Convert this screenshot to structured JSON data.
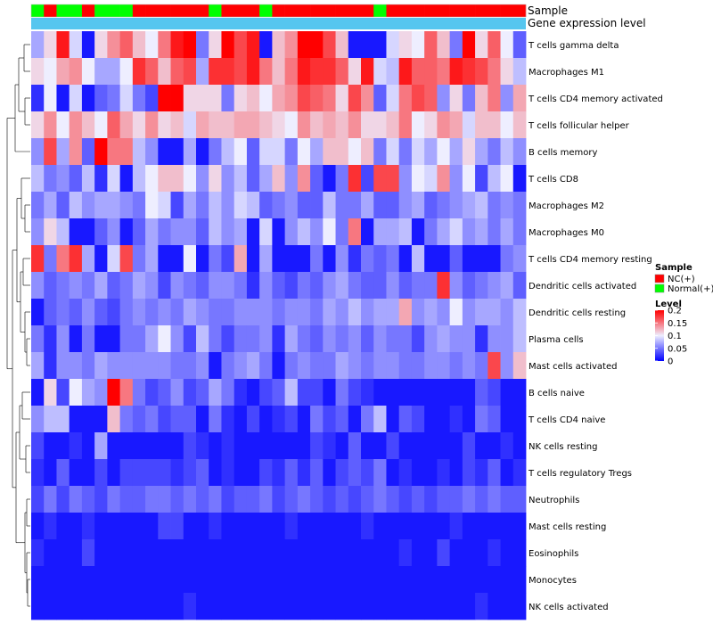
{
  "chart_data": {
    "type": "heatmap",
    "annotation_tracks": [
      {
        "name": "Sample"
      },
      {
        "name": "Gene expression level"
      }
    ],
    "sample_groups": [
      "Normal(+)",
      "NC(+)",
      "Normal(+)",
      "Normal(+)",
      "NC(+)",
      "Normal(+)",
      "Normal(+)",
      "Normal(+)",
      "NC(+)",
      "NC(+)",
      "NC(+)",
      "NC(+)",
      "NC(+)",
      "NC(+)",
      "Normal(+)",
      "NC(+)",
      "NC(+)",
      "NC(+)",
      "Normal(+)",
      "NC(+)",
      "NC(+)",
      "NC(+)",
      "NC(+)",
      "NC(+)",
      "NC(+)",
      "NC(+)",
      "NC(+)",
      "Normal(+)",
      "NC(+)",
      "NC(+)",
      "NC(+)",
      "NC(+)",
      "NC(+)",
      "NC(+)",
      "NC(+)",
      "NC(+)",
      "NC(+)",
      "NC(+)",
      "NC(+)"
    ],
    "rows": [
      "T cells gamma delta",
      "Macrophages M1",
      "T cells CD4 memory activated",
      "T cells follicular helper",
      "B cells memory",
      "T cells CD8",
      "Macrophages M2",
      "Macrophages M0",
      "T cells CD4 memory resting",
      "Dendritic cells activated",
      "Dendritic cells resting",
      "Plasma cells",
      "Mast cells activated",
      "B cells naive",
      "T cells CD4 naive",
      "NK cells resting",
      "T cells regulatory  Tregs",
      "Neutrophils",
      "Mast cells resting",
      "Eosinophils",
      "Monocytes",
      "NK cells activated"
    ],
    "values": [
      [
        0.07,
        0.11,
        0.19,
        0.09,
        0.01,
        0.11,
        0.14,
        0.16,
        0.12,
        0.1,
        0.15,
        0.19,
        0.2,
        0.05,
        0.11,
        0.2,
        0.17,
        0.19,
        0.01,
        0.12,
        0.14,
        0.2,
        0.2,
        0.17,
        0.12,
        0.01,
        0.01,
        0.01,
        0.09,
        0.11,
        0.1,
        0.16,
        0.12,
        0.05,
        0.2,
        0.11,
        0.16,
        0.1,
        0.04
      ],
      [
        0.11,
        0.1,
        0.13,
        0.14,
        0.1,
        0.07,
        0.07,
        0.1,
        0.18,
        0.16,
        0.12,
        0.16,
        0.17,
        0.07,
        0.18,
        0.18,
        0.17,
        0.19,
        0.15,
        0.12,
        0.15,
        0.19,
        0.18,
        0.18,
        0.16,
        0.11,
        0.19,
        0.09,
        0.08,
        0.19,
        0.16,
        0.16,
        0.15,
        0.19,
        0.18,
        0.17,
        0.15,
        0.11,
        0.08
      ],
      [
        0.02,
        0.1,
        0.01,
        0.09,
        0.01,
        0.04,
        0.05,
        0.09,
        0.05,
        0.03,
        0.2,
        0.2,
        0.11,
        0.11,
        0.11,
        0.05,
        0.11,
        0.12,
        0.1,
        0.13,
        0.14,
        0.17,
        0.16,
        0.15,
        0.11,
        0.17,
        0.14,
        0.04,
        0.09,
        0.15,
        0.17,
        0.16,
        0.06,
        0.11,
        0.05,
        0.12,
        0.15,
        0.06,
        0.13
      ],
      [
        0.11,
        0.14,
        0.1,
        0.14,
        0.12,
        0.1,
        0.16,
        0.13,
        0.11,
        0.14,
        0.11,
        0.12,
        0.09,
        0.13,
        0.12,
        0.12,
        0.13,
        0.13,
        0.12,
        0.11,
        0.1,
        0.14,
        0.12,
        0.13,
        0.12,
        0.14,
        0.11,
        0.11,
        0.12,
        0.15,
        0.1,
        0.11,
        0.14,
        0.13,
        0.09,
        0.12,
        0.12,
        0.1,
        0.12
      ],
      [
        0.06,
        0.17,
        0.07,
        0.14,
        0.04,
        0.2,
        0.15,
        0.15,
        0.08,
        0.06,
        0.01,
        0.01,
        0.07,
        0.01,
        0.05,
        0.08,
        0.1,
        0.04,
        0.09,
        0.09,
        0.05,
        0.1,
        0.07,
        0.12,
        0.12,
        0.1,
        0.12,
        0.05,
        0.09,
        0.05,
        0.09,
        0.07,
        0.1,
        0.07,
        0.11,
        0.07,
        0.05,
        0.08,
        0.06
      ],
      [
        0.08,
        0.05,
        0.06,
        0.04,
        0.08,
        0.02,
        0.09,
        0.01,
        0.08,
        0.1,
        0.12,
        0.12,
        0.1,
        0.06,
        0.11,
        0.06,
        0.08,
        0.04,
        0.07,
        0.12,
        0.06,
        0.14,
        0.04,
        0.01,
        0.05,
        0.18,
        0.03,
        0.17,
        0.17,
        0.06,
        0.1,
        0.09,
        0.14,
        0.06,
        0.1,
        0.03,
        0.08,
        0.1,
        0.01
      ],
      [
        0.05,
        0.07,
        0.04,
        0.08,
        0.06,
        0.07,
        0.07,
        0.06,
        0.05,
        0.1,
        0.09,
        0.03,
        0.07,
        0.05,
        0.08,
        0.06,
        0.09,
        0.08,
        0.04,
        0.05,
        0.06,
        0.04,
        0.04,
        0.08,
        0.05,
        0.05,
        0.07,
        0.04,
        0.04,
        0.06,
        0.07,
        0.04,
        0.05,
        0.06,
        0.07,
        0.08,
        0.05,
        0.06,
        0.05
      ],
      [
        0.06,
        0.11,
        0.08,
        0.01,
        0.01,
        0.04,
        0.06,
        0.01,
        0.04,
        0.07,
        0.05,
        0.06,
        0.06,
        0.04,
        0.08,
        0.06,
        0.07,
        0.01,
        0.09,
        0.01,
        0.06,
        0.08,
        0.06,
        0.1,
        0.05,
        0.15,
        0.01,
        0.07,
        0.07,
        0.08,
        0.01,
        0.05,
        0.07,
        0.09,
        0.06,
        0.07,
        0.05,
        0.07,
        0.05
      ],
      [
        0.18,
        0.05,
        0.15,
        0.18,
        0.07,
        0.01,
        0.09,
        0.17,
        0.05,
        0.07,
        0.01,
        0.01,
        0.1,
        0.01,
        0.05,
        0.03,
        0.13,
        0.01,
        0.07,
        0.01,
        0.01,
        0.01,
        0.05,
        0.01,
        0.06,
        0.02,
        0.05,
        0.04,
        0.05,
        0.01,
        0.08,
        0.01,
        0.01,
        0.04,
        0.01,
        0.01,
        0.01,
        0.05,
        0.06
      ],
      [
        0.06,
        0.04,
        0.05,
        0.06,
        0.05,
        0.07,
        0.04,
        0.05,
        0.07,
        0.06,
        0.03,
        0.06,
        0.05,
        0.04,
        0.06,
        0.06,
        0.05,
        0.02,
        0.06,
        0.04,
        0.03,
        0.05,
        0.04,
        0.06,
        0.07,
        0.05,
        0.04,
        0.04,
        0.06,
        0.04,
        0.05,
        0.05,
        0.18,
        0.06,
        0.04,
        0.05,
        0.06,
        0.07,
        0.04
      ],
      [
        0.01,
        0.04,
        0.05,
        0.04,
        0.06,
        0.04,
        0.03,
        0.05,
        0.06,
        0.05,
        0.06,
        0.05,
        0.07,
        0.06,
        0.05,
        0.05,
        0.06,
        0.06,
        0.06,
        0.05,
        0.06,
        0.06,
        0.05,
        0.07,
        0.06,
        0.08,
        0.06,
        0.07,
        0.07,
        0.13,
        0.06,
        0.07,
        0.06,
        0.1,
        0.06,
        0.07,
        0.07,
        0.06,
        0.08
      ],
      [
        0.05,
        0.02,
        0.06,
        0.01,
        0.05,
        0.01,
        0.01,
        0.05,
        0.05,
        0.07,
        0.1,
        0.06,
        0.03,
        0.08,
        0.05,
        0.03,
        0.05,
        0.05,
        0.06,
        0.02,
        0.07,
        0.05,
        0.04,
        0.06,
        0.05,
        0.06,
        0.04,
        0.06,
        0.05,
        0.05,
        0.03,
        0.06,
        0.07,
        0.06,
        0.06,
        0.02,
        0.06,
        0.06,
        0.08
      ],
      [
        0.07,
        0.02,
        0.06,
        0.06,
        0.05,
        0.07,
        0.06,
        0.06,
        0.06,
        0.06,
        0.06,
        0.05,
        0.05,
        0.06,
        0.01,
        0.05,
        0.06,
        0.07,
        0.05,
        0.01,
        0.05,
        0.06,
        0.05,
        0.05,
        0.07,
        0.06,
        0.05,
        0.06,
        0.06,
        0.05,
        0.05,
        0.06,
        0.06,
        0.05,
        0.06,
        0.05,
        0.17,
        0.06,
        0.12
      ],
      [
        0.01,
        0.11,
        0.03,
        0.1,
        0.07,
        0.06,
        0.2,
        0.15,
        0.05,
        0.03,
        0.04,
        0.06,
        0.03,
        0.04,
        0.07,
        0.05,
        0.02,
        0.01,
        0.03,
        0.04,
        0.08,
        0.03,
        0.03,
        0.01,
        0.05,
        0.03,
        0.02,
        0.01,
        0.01,
        0.01,
        0.01,
        0.01,
        0.01,
        0.01,
        0.01,
        0.04,
        0.03,
        0.01,
        0.01
      ],
      [
        0.06,
        0.08,
        0.08,
        0.01,
        0.01,
        0.01,
        0.12,
        0.05,
        0.04,
        0.05,
        0.03,
        0.04,
        0.04,
        0.01,
        0.05,
        0.02,
        0.01,
        0.03,
        0.01,
        0.02,
        0.03,
        0.01,
        0.05,
        0.03,
        0.04,
        0.01,
        0.05,
        0.08,
        0.01,
        0.04,
        0.03,
        0.01,
        0.01,
        0.02,
        0.01,
        0.05,
        0.04,
        0.01,
        0.01
      ],
      [
        0.03,
        0.01,
        0.01,
        0.02,
        0.01,
        0.07,
        0.01,
        0.01,
        0.01,
        0.01,
        0.01,
        0.01,
        0.03,
        0.02,
        0.01,
        0.02,
        0.01,
        0.01,
        0.01,
        0.01,
        0.01,
        0.01,
        0.03,
        0.02,
        0.01,
        0.04,
        0.01,
        0.01,
        0.03,
        0.01,
        0.01,
        0.01,
        0.01,
        0.01,
        0.03,
        0.01,
        0.01,
        0.02,
        0.01
      ],
      [
        0.02,
        0.01,
        0.04,
        0.01,
        0.01,
        0.03,
        0.01,
        0.03,
        0.03,
        0.03,
        0.03,
        0.02,
        0.03,
        0.04,
        0.01,
        0.02,
        0.01,
        0.01,
        0.03,
        0.02,
        0.04,
        0.02,
        0.04,
        0.01,
        0.03,
        0.04,
        0.03,
        0.05,
        0.01,
        0.02,
        0.01,
        0.01,
        0.02,
        0.01,
        0.03,
        0.02,
        0.04,
        0.01,
        0.02
      ],
      [
        0.03,
        0.05,
        0.03,
        0.05,
        0.04,
        0.03,
        0.05,
        0.04,
        0.04,
        0.05,
        0.05,
        0.04,
        0.05,
        0.04,
        0.05,
        0.03,
        0.04,
        0.04,
        0.05,
        0.03,
        0.04,
        0.05,
        0.04,
        0.03,
        0.04,
        0.03,
        0.04,
        0.05,
        0.04,
        0.03,
        0.04,
        0.03,
        0.04,
        0.04,
        0.05,
        0.04,
        0.05,
        0.04,
        0.04
      ],
      [
        0.01,
        0.02,
        0.01,
        0.01,
        0.02,
        0.01,
        0.01,
        0.01,
        0.01,
        0.01,
        0.03,
        0.03,
        0.01,
        0.01,
        0.02,
        0.01,
        0.01,
        0.01,
        0.01,
        0.01,
        0.02,
        0.01,
        0.01,
        0.01,
        0.01,
        0.01,
        0.02,
        0.01,
        0.01,
        0.01,
        0.01,
        0.01,
        0.01,
        0.02,
        0.01,
        0.01,
        0.01,
        0.01,
        0.01
      ],
      [
        0.02,
        0.01,
        0.01,
        0.01,
        0.03,
        0.01,
        0.01,
        0.01,
        0.01,
        0.01,
        0.01,
        0.01,
        0.01,
        0.01,
        0.01,
        0.01,
        0.01,
        0.01,
        0.01,
        0.01,
        0.01,
        0.01,
        0.01,
        0.01,
        0.01,
        0.01,
        0.01,
        0.01,
        0.01,
        0.02,
        0.01,
        0.01,
        0.03,
        0.01,
        0.01,
        0.01,
        0.02,
        0.01,
        0.01
      ],
      [
        0.01,
        0.01,
        0.01,
        0.01,
        0.01,
        0.01,
        0.01,
        0.01,
        0.01,
        0.01,
        0.01,
        0.01,
        0.01,
        0.01,
        0.01,
        0.01,
        0.01,
        0.01,
        0.01,
        0.01,
        0.01,
        0.01,
        0.01,
        0.01,
        0.01,
        0.01,
        0.01,
        0.01,
        0.01,
        0.01,
        0.01,
        0.01,
        0.01,
        0.01,
        0.01,
        0.01,
        0.01,
        0.01,
        0.01
      ],
      [
        0.01,
        0.01,
        0.01,
        0.01,
        0.01,
        0.01,
        0.01,
        0.01,
        0.01,
        0.01,
        0.01,
        0.01,
        0.02,
        0.01,
        0.01,
        0.01,
        0.01,
        0.01,
        0.01,
        0.01,
        0.01,
        0.01,
        0.01,
        0.01,
        0.01,
        0.01,
        0.01,
        0.01,
        0.01,
        0.01,
        0.01,
        0.01,
        0.01,
        0.01,
        0.01,
        0.02,
        0.01,
        0.01,
        0.01
      ]
    ],
    "legend_sample": {
      "title": "Sample",
      "items": [
        {
          "label": "NC(+)",
          "color": "#ff0000"
        },
        {
          "label": "Normal(+)",
          "color": "#00ff00"
        }
      ]
    },
    "legend_level": {
      "title": "Level",
      "ticks": [
        "0.2",
        "0.15",
        "0.1",
        "0.05",
        "0"
      ],
      "tick_values": [
        0.2,
        0.15,
        0.1,
        0.05,
        0
      ]
    },
    "color_scale": {
      "low": "#0000ff",
      "mid": "#eeeeff",
      "high": "#ff0000",
      "min": 0,
      "mid_value": 0.1,
      "max": 0.2
    },
    "expression_track_color": "#56c6ef"
  }
}
